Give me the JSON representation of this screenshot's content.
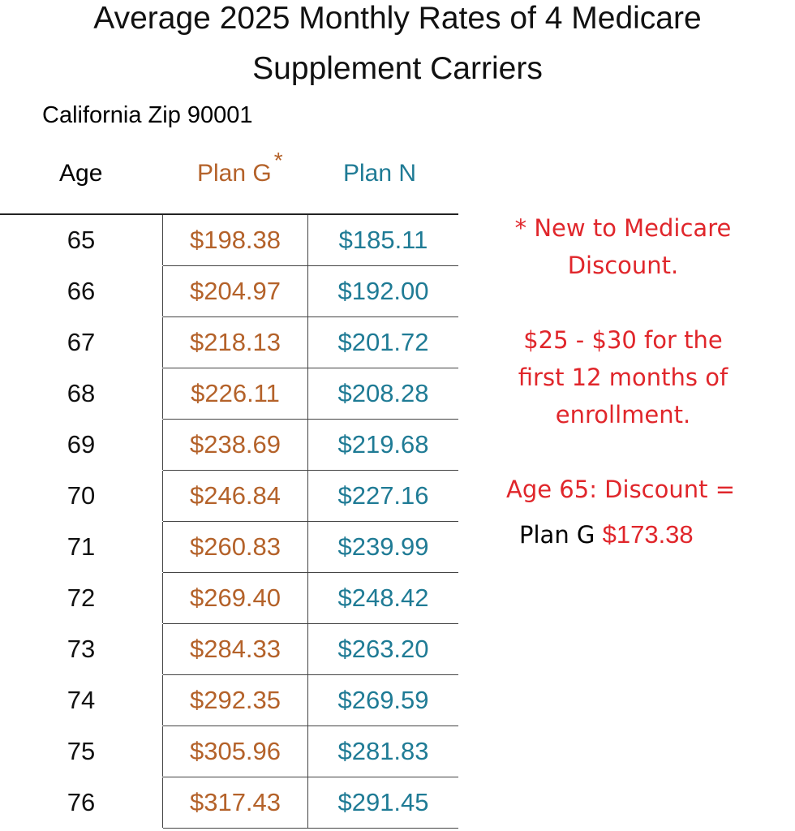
{
  "title_line1": "Average 2025 Monthly Rates of 4 Medicare",
  "title_line2": "Supplement Carriers",
  "subtitle": "California  Zip 90001",
  "headers": {
    "age": "Age",
    "plan_g": "Plan G",
    "plan_g_mark": "*",
    "plan_n": "Plan N"
  },
  "rows": [
    {
      "age": "65",
      "plan_g": "$198.38",
      "plan_n": "$185.11"
    },
    {
      "age": "66",
      "plan_g": "$204.97",
      "plan_n": "$192.00"
    },
    {
      "age": "67",
      "plan_g": "$218.13",
      "plan_n": "$201.72"
    },
    {
      "age": "68",
      "plan_g": "$226.11",
      "plan_n": "$208.28"
    },
    {
      "age": "69",
      "plan_g": "$238.69",
      "plan_n": "$219.68"
    },
    {
      "age": "70",
      "plan_g": "$246.84",
      "plan_n": "$227.16"
    },
    {
      "age": "71",
      "plan_g": "$260.83",
      "plan_n": "$239.99"
    },
    {
      "age": "72",
      "plan_g": "$269.40",
      "plan_n": "$248.42"
    },
    {
      "age": "73",
      "plan_g": "$284.33",
      "plan_n": "$263.20"
    },
    {
      "age": "74",
      "plan_g": "$292.35",
      "plan_n": "$269.59"
    },
    {
      "age": "75",
      "plan_g": "$305.96",
      "plan_n": "$281.83"
    },
    {
      "age": "76",
      "plan_g": "$317.43",
      "plan_n": "$291.45"
    }
  ],
  "notes": {
    "n1_line1": "* New to Medicare",
    "n1_line2": "Discount.",
    "n2_line1": "$25 - $30 for the",
    "n2_line2": "first 12 months of",
    "n2_line3": "enrollment.",
    "n3": "Age 65:  Discount =",
    "n4_label": "Plan G",
    "n4_value": "$173.38"
  },
  "colors": {
    "plan_g": "#b4622a",
    "plan_n": "#1f7b95",
    "note": "#e0262b"
  }
}
